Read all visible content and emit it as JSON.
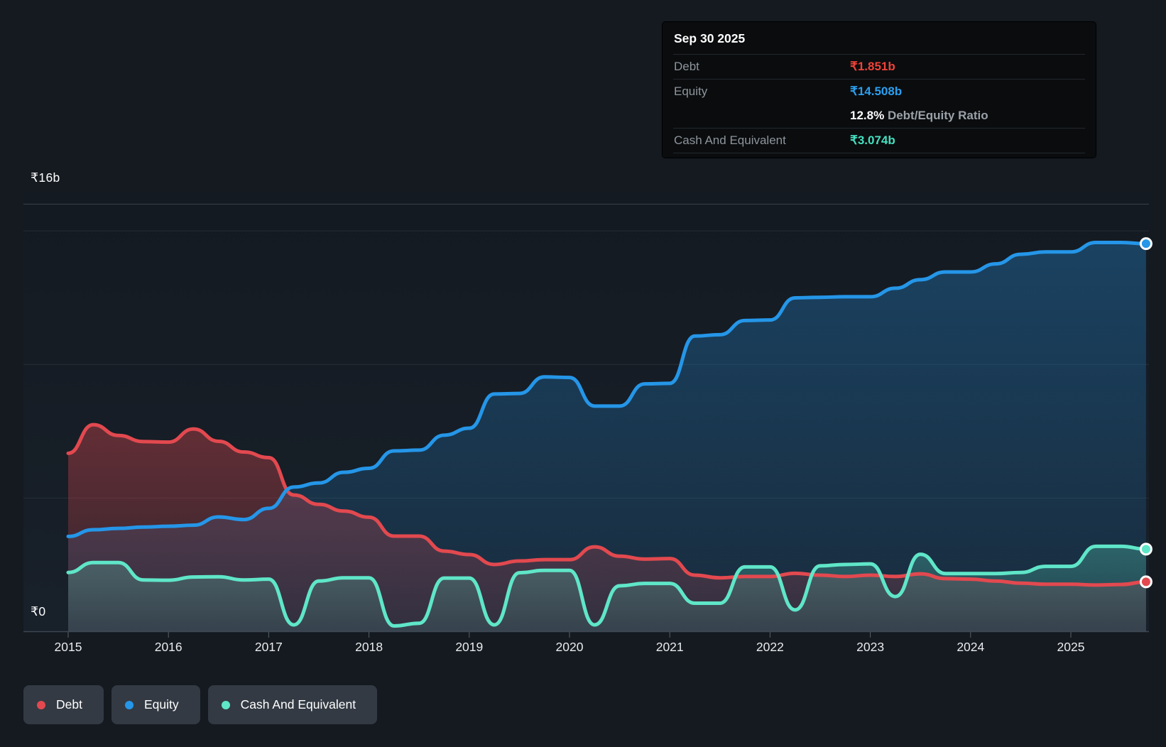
{
  "tooltip": {
    "date": "Sep 30 2025",
    "debt_label": "Debt",
    "debt_value": "₹1.851b",
    "equity_label": "Equity",
    "equity_value": "₹14.508b",
    "ratio_value": "12.8%",
    "ratio_label": "Debt/Equity Ratio",
    "cash_label": "Cash And Equivalent",
    "cash_value": "₹3.074b"
  },
  "y_axis": {
    "top_label": "₹16b",
    "bottom_label": "₹0"
  },
  "x_axis": {
    "years": [
      "2015",
      "2016",
      "2017",
      "2018",
      "2019",
      "2020",
      "2021",
      "2022",
      "2023",
      "2024",
      "2025"
    ]
  },
  "legend": {
    "debt": "Debt",
    "equity": "Equity",
    "cash": "Cash And Equivalent"
  },
  "colors": {
    "debt": "#e2494f",
    "equity": "#2596e8",
    "cash": "#5fe6c8",
    "debt_value": "#ee4339",
    "equity_value": "#2b9fef",
    "cash_value": "#45e0c0",
    "grid": "#262e37",
    "grid_strong": "#39424d",
    "axis": "#3d4650",
    "tick": "#566069",
    "year": "#e9ebee",
    "row_label": "#8e959c",
    "ratio_label": "#9aa1a8",
    "divider": "#23282e",
    "pill_bg": "#333a43",
    "tooltip_bg": "#0a0c0e"
  },
  "chart_data": {
    "type": "area",
    "title": "Debt to Equity History",
    "unit": "INR billions",
    "x_start": 2015,
    "x_step": 0.25,
    "x_end": 2025.75,
    "ylim": [
      0,
      16
    ],
    "grid": true,
    "gridline_values": [
      0,
      5,
      10,
      15,
      16
    ],
    "legend_position": "bottom-left",
    "latest_point_date": "Sep 30 2025",
    "series": [
      {
        "name": "Debt",
        "color_key": "debt",
        "fill_hi": 0.38,
        "fill_lo": 0.12,
        "values": [
          6.66,
          7.73,
          7.33,
          7.1,
          7.08,
          7.57,
          7.11,
          6.71,
          6.5,
          5.1,
          4.75,
          4.5,
          4.27,
          3.56,
          3.56,
          3.0,
          2.87,
          2.5,
          2.63,
          2.68,
          2.68,
          3.16,
          2.81,
          2.7,
          2.72,
          2.1,
          2.0,
          2.05,
          2.05,
          2.17,
          2.1,
          2.05,
          2.1,
          2.05,
          2.15,
          1.97,
          1.95,
          1.88,
          1.8,
          1.76,
          1.76,
          1.73,
          1.75,
          1.851
        ]
      },
      {
        "name": "Equity",
        "color_key": "equity",
        "fill_hi": 0.32,
        "fill_lo": 0.1,
        "values": [
          3.55,
          3.8,
          3.85,
          3.9,
          3.93,
          3.97,
          4.28,
          4.18,
          4.6,
          5.4,
          5.55,
          5.95,
          6.1,
          6.75,
          6.78,
          7.34,
          7.6,
          8.88,
          8.9,
          9.52,
          9.5,
          8.43,
          8.43,
          9.26,
          9.28,
          11.05,
          11.1,
          11.63,
          11.65,
          12.48,
          12.5,
          12.52,
          12.52,
          12.84,
          13.16,
          13.45,
          13.45,
          13.75,
          14.11,
          14.2,
          14.2,
          14.55,
          14.55,
          14.508
        ]
      },
      {
        "name": "Cash And Equivalent",
        "color_key": "cash",
        "fill_hi": 0.28,
        "fill_lo": 0.1,
        "values": [
          2.2,
          2.57,
          2.57,
          1.92,
          1.91,
          2.03,
          2.04,
          1.92,
          1.95,
          0.24,
          1.88,
          2.0,
          2.0,
          0.2,
          0.3,
          1.99,
          1.99,
          0.24,
          2.19,
          2.28,
          2.28,
          0.24,
          1.7,
          1.79,
          1.79,
          1.05,
          1.05,
          2.41,
          2.41,
          0.8,
          2.45,
          2.5,
          2.52,
          1.3,
          2.88,
          2.16,
          2.16,
          2.16,
          2.2,
          2.43,
          2.43,
          3.18,
          3.18,
          3.074
        ]
      }
    ],
    "end_values": {
      "Debt": 1.851,
      "Equity": 14.508,
      "Cash And Equivalent": 3.074
    }
  }
}
